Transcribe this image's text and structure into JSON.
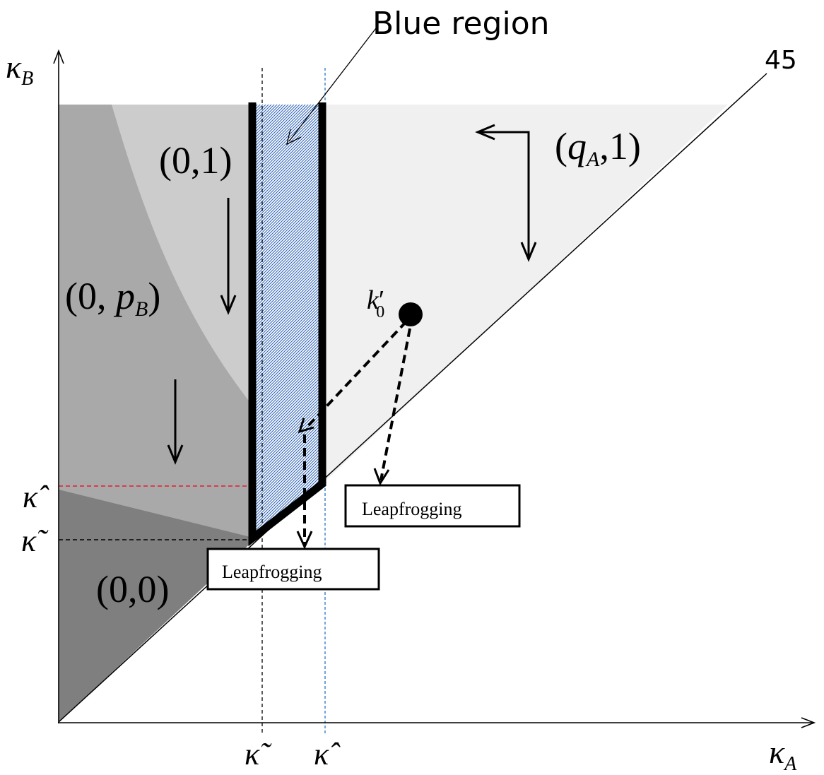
{
  "axes": {
    "x_label": "κ",
    "x_label_sub": "A",
    "y_label": "κ",
    "y_label_sub": "B"
  },
  "regions": {
    "r01": {
      "text": "(0,1)"
    },
    "r0pb": {
      "open": "(0, ",
      "p": "p",
      "sub": "B",
      "close": ")"
    },
    "r00": {
      "text": "(0,0)"
    },
    "rqa": {
      "open": "(",
      "q": "q",
      "sub": "A",
      "close": ",1)"
    }
  },
  "blue_region_label": "Blue region",
  "diagonal_label": "45",
  "point": {
    "k": "k",
    "prime": "′",
    "sub": "0"
  },
  "leapfrog_boxes": [
    "Leapfrogging",
    "Leapfrogging"
  ],
  "thresholds": {
    "kappa_tilde": "κ̃",
    "kappa_hat": "κ̂"
  },
  "colors": {
    "region_00": "#7f7f7f",
    "region_0pb": "#a9a9a9",
    "region_01": "#cccccc",
    "region_qa1": "#f0f0f0",
    "blue_hatch": "#2a5fb5",
    "red_dash": "#e0202a",
    "blue_dash": "#2a74c8"
  }
}
